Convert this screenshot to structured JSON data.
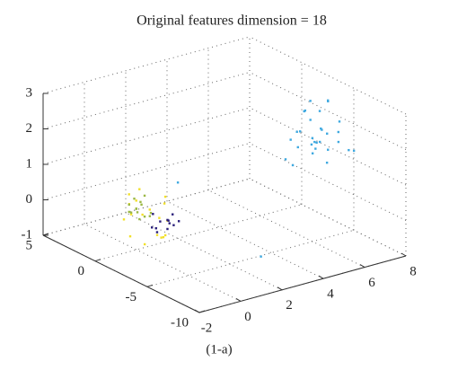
{
  "chart_data": {
    "type": "scatter3d",
    "title": "Original features dimension = 18",
    "caption": "(1-a)",
    "xlim": [
      -2,
      8
    ],
    "xticks": [
      -2,
      0,
      2,
      4,
      6,
      8
    ],
    "ylim": [
      -10,
      5
    ],
    "yticks": [
      -10,
      -5,
      0,
      5
    ],
    "zlim": [
      -1,
      3
    ],
    "zticks": [
      -1,
      0,
      1,
      2,
      3
    ],
    "grid": true,
    "series": [
      {
        "color": "#3fa9e0",
        "x": [
          5.5,
          6.1,
          6.8,
          5.9,
          6.4,
          7.0,
          5.2,
          6.6,
          6.0,
          5.7,
          6.3,
          7.2,
          5.4,
          6.9,
          6.2,
          5.8,
          6.5,
          7.1,
          5.6,
          6.7,
          6.0,
          5.3,
          6.4,
          6.8,
          5.9,
          7.3,
          6.1,
          5.5,
          6.6,
          6.3,
          1.5,
          3.0
        ],
        "y": [
          -4.5,
          -5.2,
          -6.0,
          -3.8,
          -4.9,
          -5.5,
          -4.0,
          -6.3,
          -5.8,
          -3.5,
          -4.2,
          -6.6,
          -5.0,
          -4.7,
          -3.9,
          -6.1,
          -5.4,
          -4.3,
          -5.7,
          -3.6,
          -4.8,
          -6.4,
          -5.1,
          -3.7,
          -4.4,
          -5.9,
          -6.2,
          -4.1,
          -5.3,
          -4.6,
          -1.0,
          -6.0
        ],
        "z": [
          2.1,
          1.8,
          2.4,
          1.5,
          2.6,
          2.0,
          1.3,
          1.9,
          2.3,
          1.7,
          2.8,
          1.6,
          2.2,
          1.4,
          2.5,
          2.0,
          1.2,
          2.7,
          1.9,
          1.6,
          2.4,
          1.8,
          2.1,
          1.3,
          2.6,
          1.5,
          2.2,
          1.1,
          2.9,
          1.7,
          0.8,
          -0.8
        ]
      },
      {
        "color": "#f2e02a",
        "x": [
          0.5,
          1.4,
          0.8,
          1.9,
          0.2,
          1.1,
          1.6,
          0.6,
          1.3,
          0.9,
          2.0,
          0.4,
          1.7,
          1.0,
          0.7,
          1.5,
          1.2,
          0.3
        ],
        "y": [
          1.5,
          0.2,
          2.3,
          0.8,
          1.0,
          -0.5,
          1.9,
          0.4,
          2.6,
          -0.2,
          1.2,
          2.0,
          0.6,
          1.7,
          -0.8,
          2.4,
          0.0,
          1.3
        ],
        "z": [
          -0.3,
          -0.9,
          0.1,
          -0.6,
          -0.8,
          0.2,
          -0.4,
          -1.0,
          -0.2,
          -0.7,
          0.0,
          -0.5,
          -0.95,
          0.3,
          -0.1,
          -0.6,
          -0.85,
          0.05
        ]
      },
      {
        "color": "#9bb845",
        "x": [
          0.8,
          1.0,
          0.6,
          1.2,
          0.9,
          0.7,
          1.1,
          0.5,
          1.3,
          0.8,
          1.0,
          0.6,
          0.9,
          1.2
        ],
        "y": [
          1.6,
          1.2,
          1.9,
          1.0,
          1.4,
          2.1,
          1.7,
          1.5,
          1.3,
          1.8,
          2.0,
          1.1,
          1.5,
          1.6
        ],
        "z": [
          -0.2,
          -0.4,
          -0.1,
          -0.3,
          0.0,
          -0.35,
          -0.15,
          -0.25,
          -0.45,
          0.05,
          -0.3,
          -0.2,
          -0.5,
          0.1
        ]
      },
      {
        "color": "#2a1f7a",
        "x": [
          1.4,
          1.6,
          1.2,
          1.8,
          1.5,
          1.3,
          1.7,
          1.9,
          1.1,
          1.6,
          1.4,
          2.0
        ],
        "y": [
          0.5,
          0.2,
          0.8,
          0.4,
          0.0,
          0.6,
          -0.2,
          0.3,
          0.7,
          0.1,
          0.9,
          -0.1
        ],
        "z": [
          -0.5,
          -0.7,
          -0.3,
          -0.6,
          -0.4,
          -0.8,
          -0.55,
          -0.35,
          -0.65,
          -0.45,
          -0.75,
          -0.5
        ]
      }
    ]
  }
}
